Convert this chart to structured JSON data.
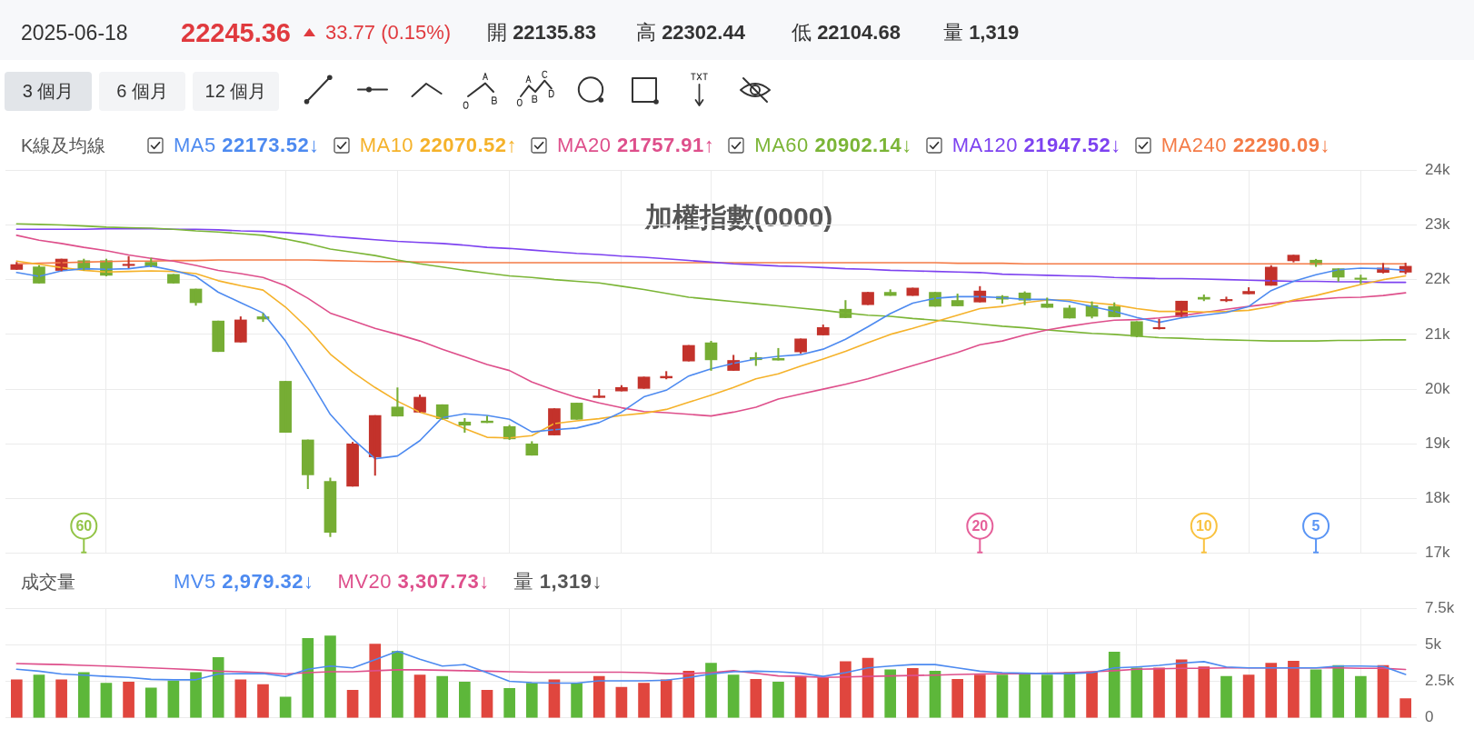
{
  "chart_data": [
    {
      "type": "candlestick",
      "title": "加權指數(0000)",
      "legend_title": "K線及均線",
      "annotations": [
        "2025-06-18",
        "22245.36",
        "33.77 (0.15%)",
        "開 22135.83",
        "高 22302.44",
        "低 22104.68",
        "量 1,319",
        "3 個月",
        "6 個月",
        "12 個月"
      ],
      "categories": [
        null,
        null,
        null,
        null,
        null,
        null,
        null,
        null,
        null,
        null,
        null,
        null,
        null,
        null,
        null,
        null,
        null,
        null,
        null,
        null,
        null,
        null,
        null,
        null,
        null,
        null,
        null,
        null,
        null,
        null,
        null,
        null,
        null,
        null,
        null,
        null,
        null,
        null,
        null,
        null,
        null,
        null,
        null,
        null,
        null,
        null,
        null,
        null,
        null,
        null,
        null,
        null,
        null,
        null,
        null,
        null,
        null,
        null,
        null,
        null,
        null,
        null,
        null
      ],
      "ohlc": [
        [
          22186,
          22317,
          22186,
          22275
        ],
        [
          22233,
          22257,
          21936,
          21936
        ],
        [
          22168,
          22376,
          22160,
          22376
        ],
        [
          22347,
          22376,
          22174,
          22186
        ],
        [
          22347,
          22376,
          22067,
          22079
        ],
        [
          22257,
          22424,
          22216,
          22281
        ],
        [
          22317,
          22394,
          22233,
          22245
        ],
        [
          22097,
          22097,
          21936,
          21936
        ],
        [
          21829,
          21829,
          21531,
          21579
        ],
        [
          21245,
          21245,
          20686,
          20686
        ],
        [
          20859,
          21323,
          20859,
          21265
        ],
        [
          21323,
          21382,
          21234,
          21280
        ],
        [
          20144,
          20144,
          19210,
          19210
        ],
        [
          19073,
          19073,
          18180,
          18436
        ],
        [
          18317,
          18377,
          17305,
          17383
        ],
        [
          18228,
          19031,
          18228,
          19001
        ],
        [
          18763,
          19519,
          18424,
          19519
        ],
        [
          19674,
          20025,
          19507,
          19507
        ],
        [
          19579,
          19894,
          19579,
          19853
        ],
        [
          19716,
          19716,
          19448,
          19460
        ],
        [
          19400,
          19466,
          19210,
          19341
        ],
        [
          19418,
          19507,
          19388,
          19388
        ],
        [
          19317,
          19341,
          19079,
          19091
        ],
        [
          19001,
          19043,
          18793,
          18793
        ],
        [
          19162,
          19644,
          19162,
          19644
        ],
        [
          19746,
          19746,
          19448,
          19448
        ],
        [
          19847,
          19995,
          19847,
          19876
        ],
        [
          19966,
          20067,
          19966,
          20031
        ],
        [
          20013,
          20222,
          20013,
          20222
        ],
        [
          20204,
          20323,
          20186,
          20234
        ],
        [
          20513,
          20799,
          20513,
          20799
        ],
        [
          20847,
          20876,
          20341,
          20535
        ],
        [
          20341,
          20620,
          20341,
          20525
        ],
        [
          20579,
          20668,
          20430,
          20537
        ],
        [
          20561,
          20745,
          20530,
          20530
        ],
        [
          20680,
          20918,
          20656,
          20918
        ],
        [
          20989,
          21174,
          20989,
          21126
        ],
        [
          21460,
          21620,
          21305,
          21305
        ],
        [
          21543,
          21769,
          21543,
          21769
        ],
        [
          21769,
          21817,
          21710,
          21710
        ],
        [
          21710,
          21847,
          21710,
          21847
        ],
        [
          21769,
          21769,
          21513,
          21513
        ],
        [
          21620,
          21739,
          21520,
          21520
        ],
        [
          21591,
          21876,
          21591,
          21793
        ],
        [
          21694,
          21711,
          21568,
          21643
        ],
        [
          21758,
          21780,
          21539,
          21625
        ],
        [
          21556,
          21666,
          21493,
          21493
        ],
        [
          21482,
          21528,
          21298,
          21298
        ],
        [
          21528,
          21597,
          21298,
          21330
        ],
        [
          21510,
          21579,
          21321,
          21321
        ],
        [
          21234,
          21234,
          20953,
          20964
        ],
        [
          21102,
          21280,
          21096,
          21125
        ],
        [
          21326,
          21608,
          21326,
          21608
        ],
        [
          21677,
          21723,
          21614,
          21643
        ],
        [
          21614,
          21683,
          21597,
          21637
        ],
        [
          21740,
          21855,
          21740,
          21786
        ],
        [
          21896,
          22258,
          21896,
          22229
        ],
        [
          22344,
          22448,
          22321,
          22448
        ],
        [
          22356,
          22373,
          22240,
          22275
        ],
        [
          22200,
          22200,
          21970,
          22045
        ],
        [
          22028,
          22085,
          21924,
          22005
        ],
        [
          22131,
          22298,
          22120,
          22212
        ],
        [
          22135.83,
          22302.44,
          22104.68,
          22245.36
        ]
      ],
      "colors": [
        "#c3322b",
        "#76ad34",
        "#c3322b",
        "#76ad34",
        "#76ad34",
        "#c3322b",
        "#76ad34",
        "#76ad34",
        "#76ad34",
        "#76ad34",
        "#c3322b",
        "#76ad34",
        "#76ad34",
        "#76ad34",
        "#76ad34",
        "#c3322b",
        "#c3322b",
        "#76ad34",
        "#c3322b",
        "#76ad34",
        "#76ad34",
        "#76ad34",
        "#76ad34",
        "#76ad34",
        "#c3322b",
        "#76ad34",
        "#c3322b",
        "#c3322b",
        "#c3322b",
        "#c3322b",
        "#c3322b",
        "#76ad34",
        "#c3322b",
        "#76ad34",
        "#76ad34",
        "#c3322b",
        "#c3322b",
        "#76ad34",
        "#c3322b",
        "#76ad34",
        "#c3322b",
        "#76ad34",
        "#76ad34",
        "#c3322b",
        "#76ad34",
        "#76ad34",
        "#76ad34",
        "#76ad34",
        "#76ad34",
        "#76ad34",
        "#76ad34",
        "#c3322b",
        "#c3322b",
        "#76ad34",
        "#c3322b",
        "#c3322b",
        "#c3322b",
        "#c3322b",
        "#76ad34",
        "#76ad34",
        "#76ad34",
        "#c3322b",
        "#c3322b"
      ],
      "series": [
        {
          "name": "MA5 22173.52↓",
          "type": "line",
          "color": "#4d8af0",
          "values": [
            22130,
            22060,
            22160,
            22200,
            22190,
            22200,
            22250,
            22170,
            22060,
            21770,
            21580,
            21390,
            20880,
            20220,
            19540,
            19090,
            18730,
            18780,
            19060,
            19480,
            19550,
            19520,
            19450,
            19220,
            19260,
            19290,
            19390,
            19580,
            19860,
            19980,
            20240,
            20370,
            20470,
            20550,
            20600,
            20630,
            20730,
            20910,
            21140,
            21380,
            21570,
            21660,
            21690,
            21690,
            21670,
            21640,
            21640,
            21600,
            21510,
            21420,
            21310,
            21220,
            21300,
            21350,
            21400,
            21510,
            21800,
            21970,
            22090,
            22180,
            22210,
            22200,
            22170
          ]
        },
        {
          "name": "MA10 22070.52↑",
          "type": "line",
          "color": "#f5b22a",
          "values": [
            22340,
            22280,
            22220,
            22170,
            22140,
            22150,
            22160,
            22150,
            22110,
            21980,
            21890,
            21810,
            21500,
            21110,
            20640,
            20310,
            20030,
            19780,
            19580,
            19460,
            19280,
            19120,
            19110,
            19150,
            19370,
            19420,
            19460,
            19520,
            19560,
            19630,
            19760,
            19890,
            20030,
            20190,
            20280,
            20420,
            20550,
            20690,
            20850,
            21000,
            21110,
            21230,
            21350,
            21470,
            21510,
            21580,
            21630,
            21630,
            21580,
            21540,
            21470,
            21420,
            21420,
            21410,
            21420,
            21440,
            21510,
            21630,
            21710,
            21810,
            21910,
            22000,
            22070
          ]
        },
        {
          "name": "MA20 21757.91↑",
          "type": "line",
          "color": "#de4f8b",
          "values": [
            22810,
            22720,
            22660,
            22590,
            22530,
            22450,
            22390,
            22340,
            22260,
            22170,
            22110,
            22040,
            21890,
            21660,
            21390,
            21250,
            21110,
            21000,
            20880,
            20730,
            20590,
            20450,
            20340,
            20130,
            19980,
            19850,
            19750,
            19660,
            19590,
            19570,
            19540,
            19510,
            19580,
            19670,
            19820,
            19910,
            20000,
            20090,
            20190,
            20310,
            20430,
            20550,
            20670,
            20810,
            20880,
            20990,
            21080,
            21150,
            21210,
            21260,
            21270,
            21300,
            21340,
            21400,
            21460,
            21510,
            21560,
            21610,
            21640,
            21670,
            21680,
            21710,
            21760
          ]
        },
        {
          "name": "MA60 20902.14↓",
          "type": "line",
          "color": "#7bb536",
          "values": [
            23020,
            23010,
            23000,
            22980,
            22960,
            22950,
            22940,
            22920,
            22890,
            22870,
            22840,
            22810,
            22740,
            22660,
            22560,
            22500,
            22440,
            22360,
            22290,
            22230,
            22170,
            22120,
            22070,
            22040,
            22000,
            21970,
            21940,
            21880,
            21820,
            21750,
            21680,
            21640,
            21600,
            21560,
            21520,
            21480,
            21440,
            21390,
            21350,
            21330,
            21290,
            21260,
            21230,
            21190,
            21150,
            21120,
            21080,
            21050,
            21020,
            21000,
            20970,
            20940,
            20930,
            20910,
            20900,
            20890,
            20880,
            20880,
            20880,
            20890,
            20890,
            20900,
            20900
          ]
        },
        {
          "name": "MA120 21947.52↓",
          "type": "line",
          "color": "#7d42f0",
          "values": [
            22920,
            22920,
            22920,
            22920,
            22930,
            22930,
            22930,
            22920,
            22920,
            22910,
            22890,
            22880,
            22860,
            22830,
            22790,
            22760,
            22730,
            22700,
            22680,
            22660,
            22630,
            22590,
            22570,
            22540,
            22510,
            22480,
            22460,
            22430,
            22410,
            22380,
            22350,
            22320,
            22290,
            22270,
            22250,
            22240,
            22220,
            22200,
            22190,
            22170,
            22160,
            22150,
            22140,
            22130,
            22100,
            22090,
            22080,
            22070,
            22060,
            22040,
            22030,
            22020,
            22020,
            22010,
            22000,
            21990,
            21980,
            21970,
            21970,
            21960,
            21960,
            21950,
            21950
          ]
        },
        {
          "name": "MA240 22290.09↓",
          "type": "line",
          "color": "#f47b47",
          "values": [
            22290,
            22300,
            22310,
            22320,
            22330,
            22340,
            22340,
            22350,
            22350,
            22360,
            22360,
            22360,
            22360,
            22360,
            22350,
            22340,
            22330,
            22330,
            22320,
            22320,
            22310,
            22310,
            22310,
            22310,
            22310,
            22310,
            22310,
            22310,
            22310,
            22310,
            22310,
            22310,
            22310,
            22310,
            22310,
            22310,
            22310,
            22310,
            22310,
            22310,
            22310,
            22310,
            22300,
            22300,
            22300,
            22290,
            22290,
            22290,
            22290,
            22290,
            22290,
            22290,
            22290,
            22290,
            22290,
            22290,
            22290,
            22290,
            22290,
            22290,
            22290,
            22290,
            22290
          ]
        },
        {
          "name": "60",
          "type": "scatter",
          "marker": "circle",
          "color": "#93c447",
          "values": [
            null,
            null,
            null,
            17500,
            null,
            null,
            null,
            null,
            null,
            null,
            null,
            null,
            null,
            null,
            null,
            null,
            null,
            null,
            null,
            null,
            null,
            null,
            null,
            null,
            null,
            null,
            null,
            null,
            null,
            null,
            null,
            null,
            null,
            null,
            null,
            null,
            null,
            null,
            null,
            null,
            null,
            null,
            null,
            null,
            null,
            null,
            null,
            null,
            null,
            null,
            null,
            null,
            null,
            null,
            null,
            null,
            null,
            null,
            null,
            null,
            null,
            null,
            null
          ]
        },
        {
          "name": "20",
          "type": "scatter",
          "marker": "circle",
          "color": "#e5609a",
          "values": [
            null,
            null,
            null,
            null,
            null,
            null,
            null,
            null,
            null,
            null,
            null,
            null,
            null,
            null,
            null,
            null,
            null,
            null,
            null,
            null,
            null,
            null,
            null,
            null,
            null,
            null,
            null,
            null,
            null,
            null,
            null,
            null,
            null,
            null,
            null,
            null,
            null,
            null,
            null,
            null,
            null,
            null,
            null,
            17500,
            null,
            null,
            null,
            null,
            null,
            null,
            null,
            null,
            null,
            null,
            null,
            null,
            null,
            null,
            null,
            null,
            null,
            null,
            null
          ]
        },
        {
          "name": "10",
          "type": "scatter",
          "marker": "circle",
          "color": "#f9c240",
          "values": [
            null,
            null,
            null,
            null,
            null,
            null,
            null,
            null,
            null,
            null,
            null,
            null,
            null,
            null,
            null,
            null,
            null,
            null,
            null,
            null,
            null,
            null,
            null,
            null,
            null,
            null,
            null,
            null,
            null,
            null,
            null,
            null,
            null,
            null,
            null,
            null,
            null,
            null,
            null,
            null,
            null,
            null,
            null,
            null,
            null,
            null,
            null,
            null,
            null,
            null,
            null,
            null,
            null,
            17500,
            null,
            null,
            null,
            null,
            null,
            null,
            null,
            null,
            null
          ]
        },
        {
          "name": "5",
          "type": "scatter",
          "marker": "circle",
          "color": "#5a95f5",
          "values": [
            null,
            null,
            null,
            null,
            null,
            null,
            null,
            null,
            null,
            null,
            null,
            null,
            null,
            null,
            null,
            null,
            null,
            null,
            null,
            null,
            null,
            null,
            null,
            null,
            null,
            null,
            null,
            null,
            null,
            null,
            null,
            null,
            null,
            null,
            null,
            null,
            null,
            null,
            null,
            null,
            null,
            null,
            null,
            null,
            null,
            null,
            null,
            null,
            null,
            null,
            null,
            null,
            null,
            null,
            null,
            null,
            null,
            null,
            17500,
            null,
            null,
            null,
            null
          ]
        }
      ],
      "ylim": [
        17000,
        24000
      ],
      "yticks": [
        {
          "value": 17000,
          "label": "17k"
        },
        {
          "value": 18000,
          "label": "18k"
        },
        {
          "value": 19000,
          "label": "19k"
        },
        {
          "value": 20000,
          "label": "20k"
        },
        {
          "value": 21000,
          "label": "21k"
        },
        {
          "value": 22000,
          "label": "22k"
        },
        {
          "value": 23000,
          "label": "23k"
        },
        {
          "value": 24000,
          "label": "24k"
        }
      ],
      "grid": true,
      "legend": "top left",
      "tick_labels": "y",
      "marker": "none"
    },
    {
      "type": "bar",
      "legend_title": "成交量",
      "annotations": [
        "量 1,319↓"
      ],
      "categories": [
        null,
        null,
        null,
        null,
        null,
        null,
        null,
        null,
        null,
        null,
        null,
        null,
        null,
        null,
        null,
        null,
        null,
        null,
        null,
        null,
        null,
        null,
        null,
        null,
        null,
        null,
        null,
        null,
        null,
        null,
        null,
        null,
        null,
        null,
        null,
        null,
        null,
        null,
        null,
        null,
        null,
        null,
        null,
        null,
        null,
        null,
        null,
        null,
        null,
        null,
        null,
        null,
        null,
        null,
        null,
        null,
        null,
        null,
        null,
        null,
        null,
        null,
        null
      ],
      "series": [
        {
          "values": [
            2610,
            2930,
            2610,
            3100,
            2380,
            2450,
            2050,
            2540,
            3100,
            4140,
            2610,
            2280,
            1430,
            5440,
            5610,
            1890,
            5050,
            4560,
            2930,
            2840,
            2450,
            1890,
            2020,
            2380,
            2610,
            2380,
            2840,
            2090,
            2380,
            2610,
            3200,
            3750,
            2930,
            2640,
            2450,
            2840,
            2770,
            3850,
            4080,
            3290,
            3390,
            3200,
            2640,
            2930,
            2930,
            3030,
            2930,
            3100,
            3160,
            4500,
            3420,
            3420,
            3980,
            3490,
            2840,
            2930,
            3750,
            3880,
            3290,
            3590,
            2840,
            3590,
            1319
          ],
          "colors": [
            "#e0463e",
            "#5db73a",
            "#e0463e",
            "#5db73a",
            "#5db73a",
            "#e0463e",
            "#5db73a",
            "#5db73a",
            "#5db73a",
            "#5db73a",
            "#e0463e",
            "#e0463e",
            "#5db73a",
            "#5db73a",
            "#5db73a",
            "#e0463e",
            "#e0463e",
            "#5db73a",
            "#e0463e",
            "#5db73a",
            "#5db73a",
            "#e0463e",
            "#5db73a",
            "#5db73a",
            "#e0463e",
            "#5db73a",
            "#e0463e",
            "#e0463e",
            "#e0463e",
            "#e0463e",
            "#e0463e",
            "#5db73a",
            "#5db73a",
            "#e0463e",
            "#5db73a",
            "#e0463e",
            "#e0463e",
            "#e0463e",
            "#e0463e",
            "#5db73a",
            "#e0463e",
            "#5db73a",
            "#e0463e",
            "#e0463e",
            "#5db73a",
            "#5db73a",
            "#5db73a",
            "#5db73a",
            "#e0463e",
            "#5db73a",
            "#5db73a",
            "#e0463e",
            "#e0463e",
            "#e0463e",
            "#5db73a",
            "#e0463e",
            "#e0463e",
            "#e0463e",
            "#5db73a",
            "#5db73a",
            "#5db73a",
            "#e0463e",
            "#e0463e"
          ]
        },
        {
          "name": "MV5 2,979.32↓",
          "type": "line",
          "color": "#4d8af0",
          "values": [
            3330,
            3200,
            3000,
            2930,
            2840,
            2770,
            2640,
            2610,
            2610,
            3000,
            3030,
            3030,
            2840,
            3330,
            3550,
            3420,
            3980,
            4560,
            4010,
            3550,
            3650,
            3100,
            2510,
            2410,
            2380,
            2380,
            2540,
            2540,
            2540,
            2580,
            2770,
            3000,
            3160,
            3200,
            3160,
            3060,
            2840,
            3100,
            3420,
            3550,
            3650,
            3650,
            3420,
            3200,
            3100,
            3060,
            3030,
            3030,
            3100,
            3420,
            3490,
            3590,
            3750,
            3850,
            3490,
            3420,
            3420,
            3420,
            3420,
            3550,
            3550,
            3520,
            2980
          ]
        },
        {
          "name": "MV20 3,307.73↓",
          "type": "line",
          "color": "#de4f8b",
          "values": [
            3720,
            3680,
            3650,
            3590,
            3550,
            3490,
            3420,
            3360,
            3290,
            3200,
            3160,
            3100,
            3000,
            3100,
            3160,
            3160,
            3230,
            3290,
            3290,
            3260,
            3230,
            3200,
            3160,
            3130,
            3130,
            3130,
            3130,
            3130,
            3100,
            3030,
            3030,
            3100,
            3230,
            3050,
            2870,
            2840,
            2770,
            2800,
            2840,
            2870,
            2900,
            2930,
            2970,
            3000,
            3030,
            3030,
            3060,
            3100,
            3160,
            3230,
            3330,
            3360,
            3390,
            3390,
            3420,
            3420,
            3420,
            3420,
            3420,
            3420,
            3390,
            3390,
            3310
          ]
        }
      ],
      "ylim": [
        0,
        7500
      ],
      "yticks": [
        0,
        {
          "value": 2500,
          "label": "2.5k"
        },
        {
          "value": 5000,
          "label": "5k"
        },
        {
          "value": 7500,
          "label": "7.5k"
        }
      ],
      "grid": true,
      "legend": "top left",
      "tick_labels": "y",
      "marker": "none"
    }
  ]
}
